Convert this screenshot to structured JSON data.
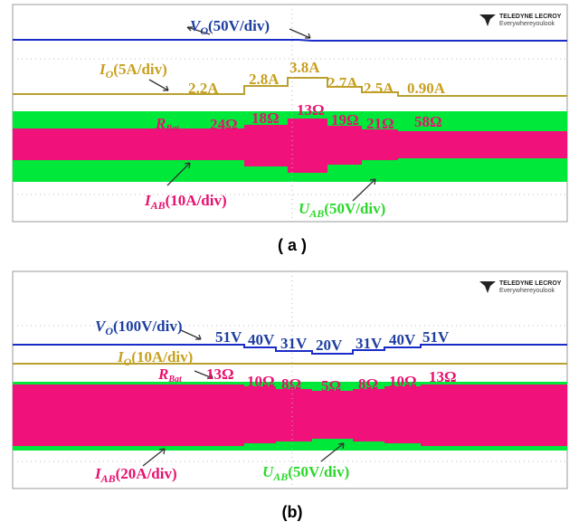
{
  "panels": [
    {
      "caption": "( a )",
      "logo": {
        "brand": "TELEDYNE LECROY",
        "tagline": "Everywhereyoulook"
      },
      "traces": [
        {
          "symbol": "V",
          "subscript": "O",
          "scale": "(50V/div)"
        },
        {
          "symbol": "I",
          "subscript": "O",
          "scale": "(5A/div)"
        },
        {
          "symbol": "I",
          "subscript": "AB",
          "scale": "(10A/div)"
        },
        {
          "symbol": "U",
          "subscript": "AB",
          "scale": "(50V/div)"
        }
      ],
      "resistance_symbol": {
        "symbol": "R",
        "subscript": "Bat"
      },
      "current_levels": [
        "2.2A",
        "2.8A",
        "3.8A",
        "2.7A",
        "2.5A",
        "0.90A"
      ],
      "resistances": [
        "24Ω",
        "18Ω",
        "13Ω",
        "19Ω",
        "21Ω",
        "58Ω"
      ]
    },
    {
      "caption": "(b)",
      "logo": {
        "brand": "TELEDYNE LECROY",
        "tagline": "Everywhereyoulook"
      },
      "traces": [
        {
          "symbol": "V",
          "subscript": "O",
          "scale": "(100V/div)"
        },
        {
          "symbol": "I",
          "subscript": "O",
          "scale": "(10A/div)"
        },
        {
          "symbol": "I",
          "subscript": "AB",
          "scale": "(20A/div)"
        },
        {
          "symbol": "U",
          "subscript": "AB",
          "scale": "(50V/div)"
        }
      ],
      "resistance_symbol": {
        "symbol": "R",
        "subscript": "Bat"
      },
      "voltage_levels": [
        "51V",
        "40V",
        "31V",
        "20V",
        "31V",
        "40V",
        "51V"
      ],
      "resistances": [
        "13Ω",
        "10Ω",
        "8Ω",
        "5Ω",
        "8Ω",
        "10Ω",
        "13Ω"
      ]
    }
  ]
}
